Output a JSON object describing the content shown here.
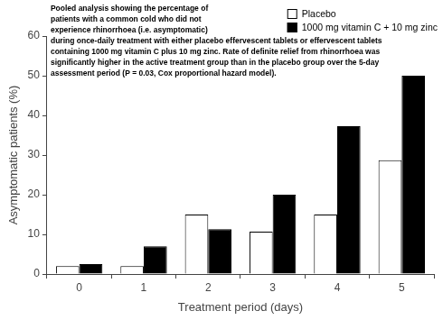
{
  "chart_data": {
    "type": "bar",
    "annotation": [
      "Pooled analysis showing the percentage of",
      "patients with a common cold who did not",
      "experience rhinorrhoea (i.e. asymptomatic)",
      "during once-daily treatment with either placebo effervescent tablets or effervescent tablets",
      "containing 1000 mg vitamin C plus 10 mg zinc. Rate of definite relief from rhinorrhoea was",
      "significantly higher in the active treatment group than in the placebo group over the 5-day",
      "assessment period (P = 0.03, Cox proportional hazard model)."
    ],
    "x_label": "Treatment period (days)",
    "y_label": "Asymptomatic patients (%)",
    "categories": [
      "0",
      "1",
      "2",
      "3",
      "4",
      "5"
    ],
    "series": [
      {
        "name": "Placebo",
        "color": "#ffffff",
        "values": [
          2,
          2,
          15,
          10.7,
          15,
          28.7
        ]
      },
      {
        "name": "1000 mg vitamin C + 10 mg zinc",
        "color": "#000000",
        "values": [
          2.5,
          7,
          11.3,
          20,
          37.3,
          50
        ]
      }
    ],
    "ylim": [
      0,
      60
    ],
    "yticks": [
      0,
      10,
      20,
      30,
      40,
      50,
      60
    ],
    "grid": false,
    "legend": "upper right"
  }
}
